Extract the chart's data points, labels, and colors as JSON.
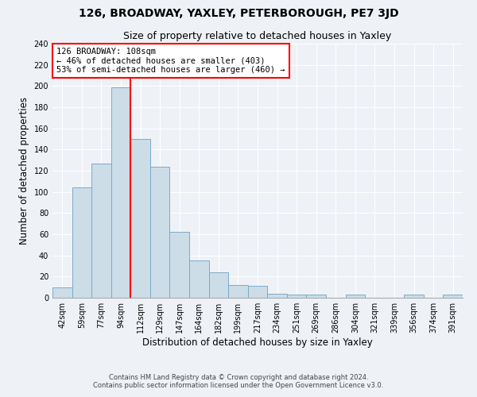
{
  "title": "126, BROADWAY, YAXLEY, PETERBOROUGH, PE7 3JD",
  "subtitle": "Size of property relative to detached houses in Yaxley",
  "xlabel": "Distribution of detached houses by size in Yaxley",
  "ylabel": "Number of detached properties",
  "footer_line1": "Contains HM Land Registry data © Crown copyright and database right 2024.",
  "footer_line2": "Contains public sector information licensed under the Open Government Licence v3.0.",
  "bin_labels": [
    "42sqm",
    "59sqm",
    "77sqm",
    "94sqm",
    "112sqm",
    "129sqm",
    "147sqm",
    "164sqm",
    "182sqm",
    "199sqm",
    "217sqm",
    "234sqm",
    "251sqm",
    "269sqm",
    "286sqm",
    "304sqm",
    "321sqm",
    "339sqm",
    "356sqm",
    "374sqm",
    "391sqm"
  ],
  "bar_heights": [
    10,
    104,
    127,
    199,
    150,
    124,
    62,
    35,
    24,
    12,
    11,
    4,
    3,
    3,
    0,
    3,
    0,
    0,
    3,
    0,
    3
  ],
  "bar_color": "#ccdde8",
  "bar_edge_color": "#7aaac8",
  "vline_index": 4,
  "vline_color": "red",
  "annotation_title": "126 BROADWAY: 108sqm",
  "annotation_line1": "← 46% of detached houses are smaller (403)",
  "annotation_line2": "53% of semi-detached houses are larger (460) →",
  "ylim": [
    0,
    240
  ],
  "yticks": [
    0,
    20,
    40,
    60,
    80,
    100,
    120,
    140,
    160,
    180,
    200,
    220,
    240
  ],
  "background_color": "#eef2f7",
  "grid_color": "#ffffff",
  "title_fontsize": 10,
  "subtitle_fontsize": 9,
  "axis_label_fontsize": 8.5,
  "tick_fontsize": 7,
  "annotation_fontsize": 7.5,
  "footer_fontsize": 6
}
